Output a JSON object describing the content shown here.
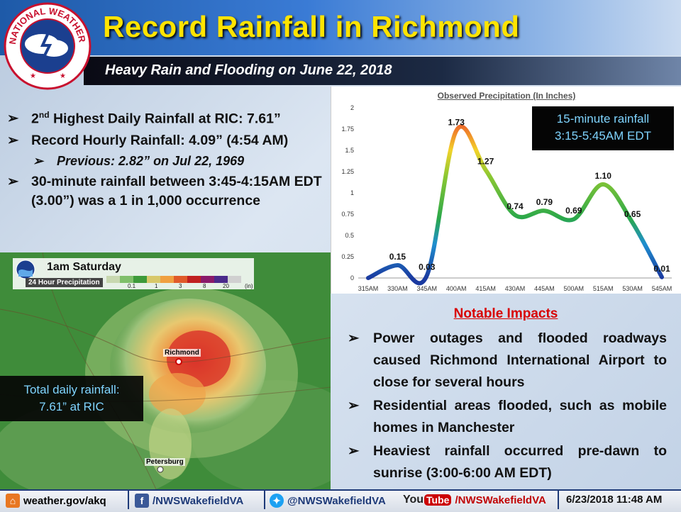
{
  "header": {
    "title": "Record Rainfall in Richmond",
    "subtitle": "Heavy Rain and Flooding on June 22, 2018",
    "logo_text": "NATIONAL WEATHER SERVICE"
  },
  "bullets": {
    "b1_sup": "nd",
    "b1_pre": "2",
    "b1_rest": " Highest Daily Rainfall at RIC: 7.61”",
    "b2": "Record Hourly Rainfall: 4.09” (4:54 AM)",
    "b3": "Previous: 2.82” on Jul 22, 1969",
    "b4": "30-minute rainfall between 3:45-4:15AM EDT (3.00”) was a 1 in 1,000 occurrence"
  },
  "chart_callout": {
    "line1": "15-minute rainfall",
    "line2": "3:15-5:45AM EDT"
  },
  "chart_data": {
    "type": "line",
    "title": "Observed Precipitation (In Inches)",
    "categories": [
      "315AM",
      "330AM",
      "345AM",
      "400AM",
      "415AM",
      "430AM",
      "445AM",
      "500AM",
      "515AM",
      "530AM",
      "545AM"
    ],
    "values": [
      0,
      0.15,
      0.03,
      1.73,
      1.27,
      0.74,
      0.79,
      0.69,
      1.1,
      0.65,
      0.01
    ],
    "data_labels": [
      "",
      "0.15",
      "0.03",
      "1.73",
      "1.27",
      "0.74",
      "0.79",
      "0.69",
      "1.10",
      "0.65",
      "0.01"
    ],
    "yticks": [
      "0",
      "0.25",
      "0.5",
      "0.75",
      "1",
      "1.25",
      "1.5",
      "1.75",
      "2"
    ],
    "ylim": [
      0,
      2
    ],
    "grid": false,
    "line_color_rule": "gradient by value: blue low, green mid, yellow/orange/red high"
  },
  "map": {
    "time_label": "1am Saturday",
    "product_label": "24 Hour Precipitation",
    "scale_labels": [
      "0.1",
      "1",
      "3",
      "8",
      "20",
      "(in)"
    ],
    "cities": [
      "Richmond",
      "Petersburg"
    ],
    "callout_line1": "Total daily rainfall:",
    "callout_line2": "7.61” at RIC"
  },
  "impacts": {
    "title": "Notable Impacts",
    "items": [
      "Power outages and flooded roadways caused Richmond International Airport to close for several hours",
      "Residential areas flooded, such as mobile homes in Manchester",
      "Heaviest rainfall occurred pre-dawn to sunrise (3:00-6:00 AM EDT)"
    ]
  },
  "footer": {
    "website": "weather.gov/akq",
    "facebook": "/NWSWakefieldVA",
    "twitter": "@NWSWakefieldVA",
    "youtube_label": "You",
    "youtube_tube": "Tube",
    "youtube": "/NWSWakefieldVA",
    "timestamp": "6/23/2018 11:48 AM"
  },
  "colors": {
    "title": "#ffe400",
    "impacts_title": "#d80000",
    "callout_text": "#7fd4ff"
  }
}
